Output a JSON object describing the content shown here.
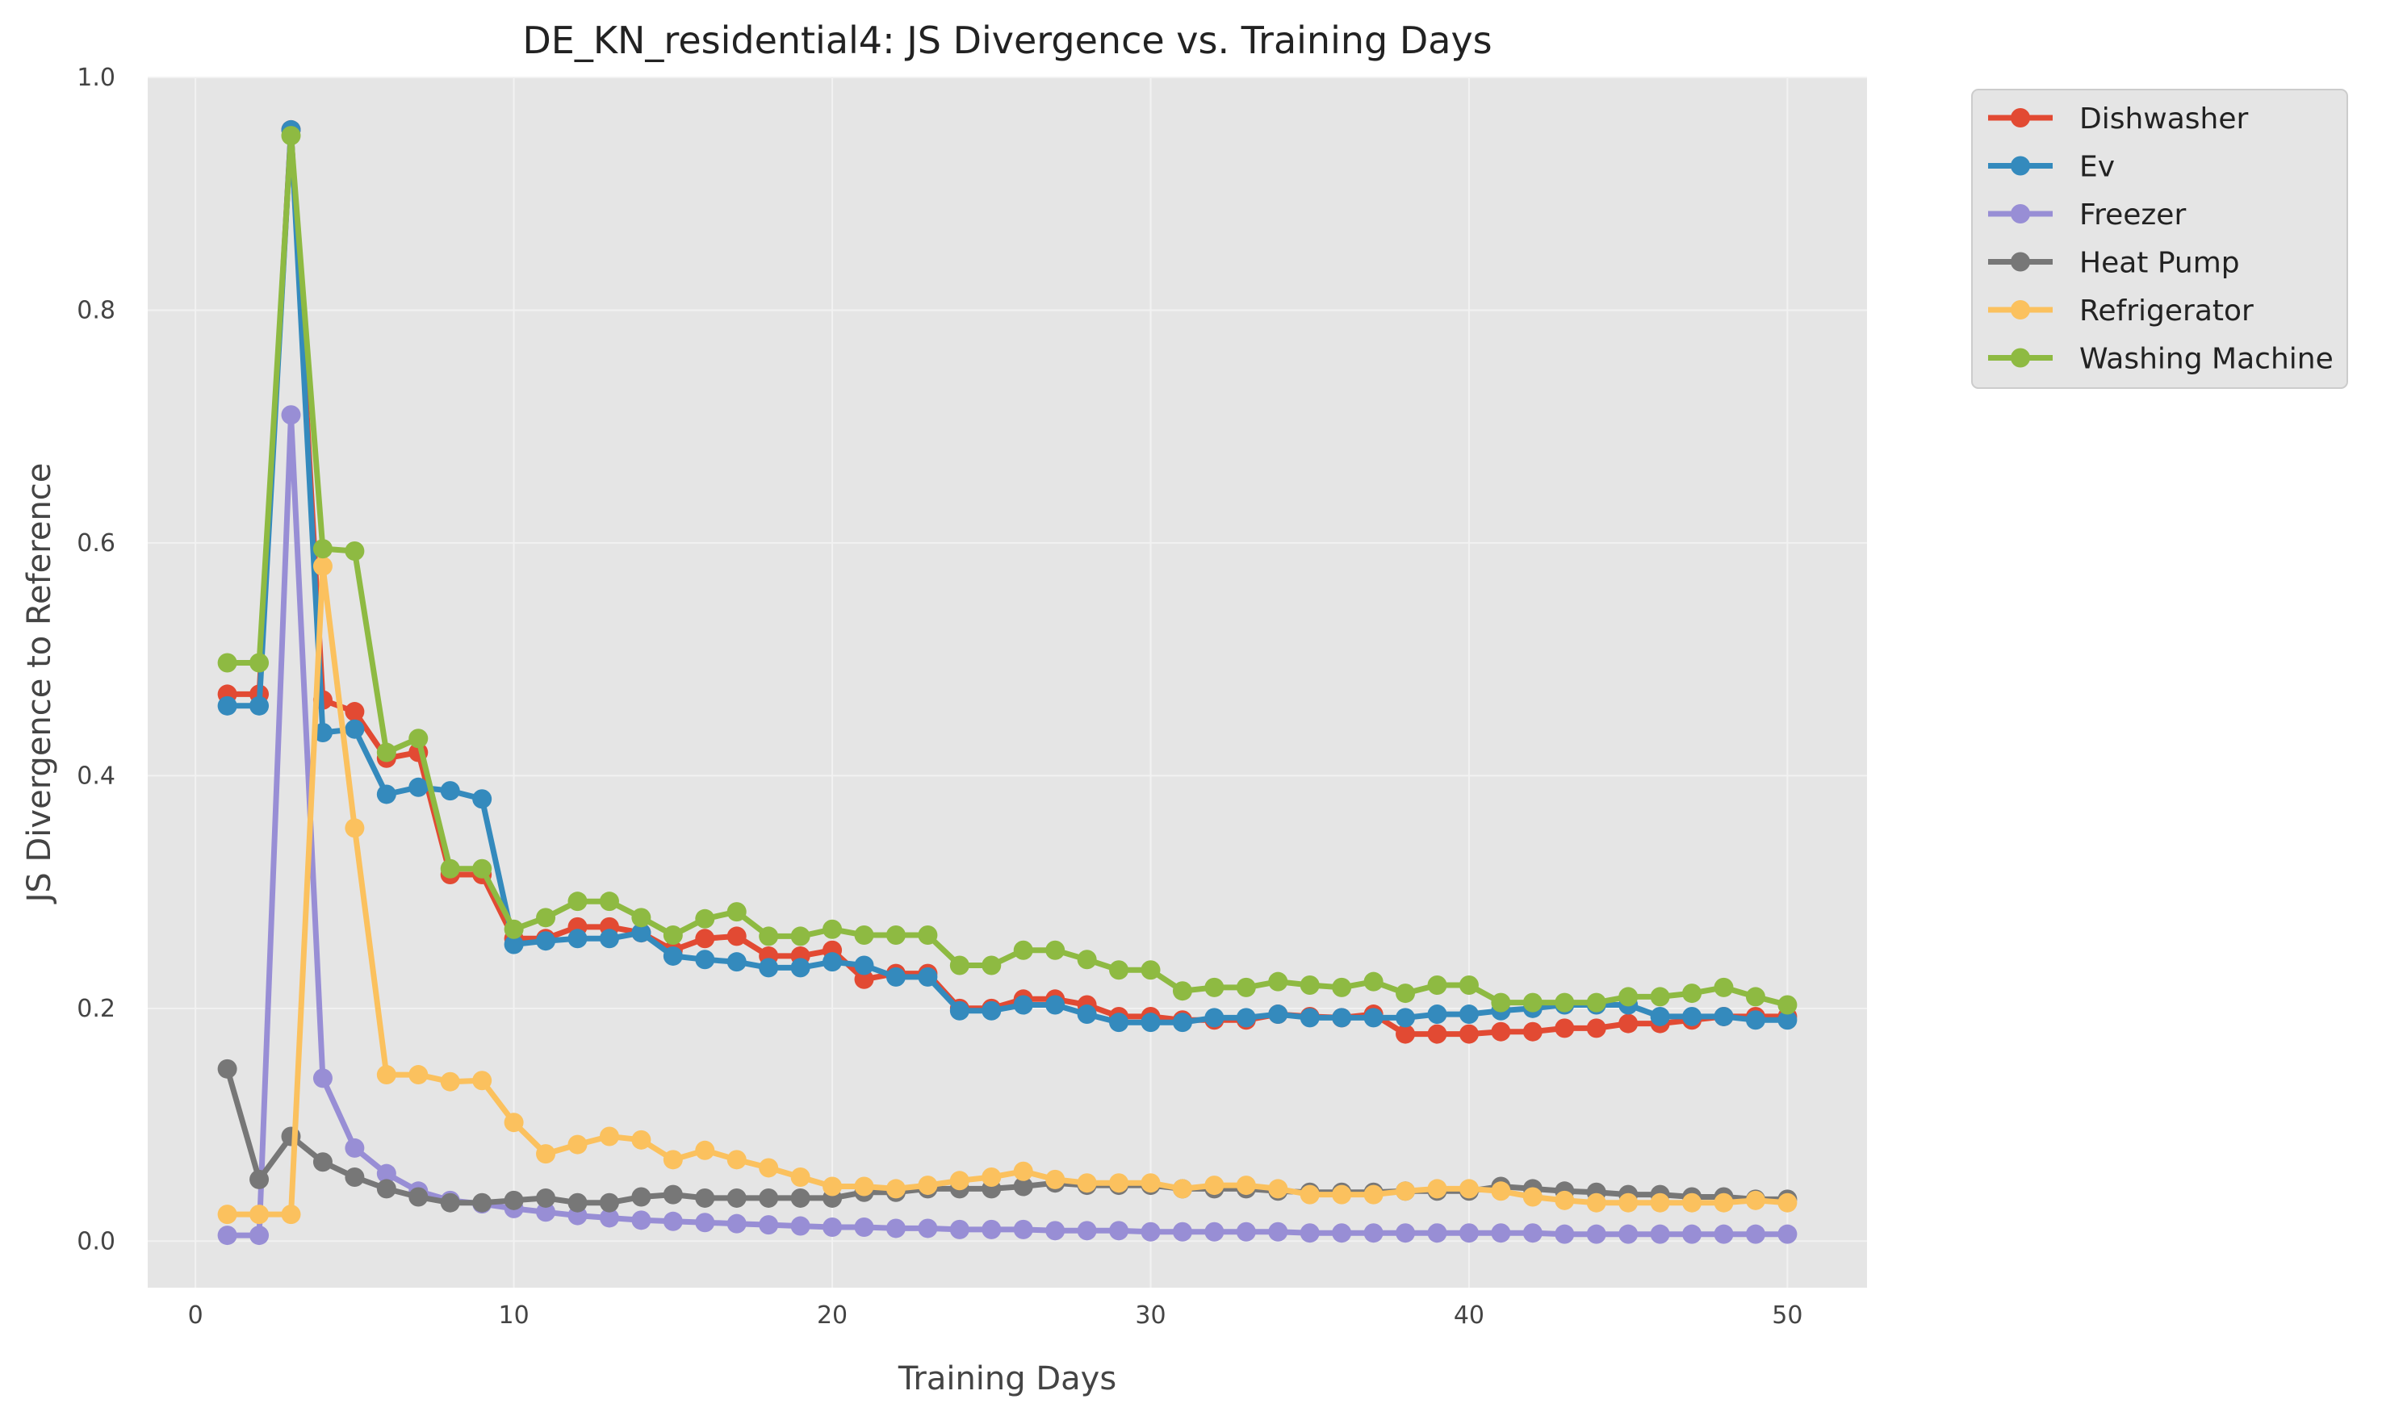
{
  "chart_data": {
    "type": "line",
    "title": "DE_KN_residential4: JS Divergence vs. Training Days",
    "xlabel": "Training Days",
    "ylabel": "JS Divergence to Reference",
    "xlim": [
      -1.5,
      52.5
    ],
    "ylim": [
      -0.04,
      1.0
    ],
    "xticks": [
      0,
      10,
      20,
      30,
      40,
      50
    ],
    "xtick_labels": [
      "0",
      "10",
      "20",
      "30",
      "40",
      "50"
    ],
    "yticks": [
      0.0,
      0.2,
      0.4,
      0.6,
      0.8,
      1.0
    ],
    "ytick_labels": [
      "0.0",
      "0.2",
      "0.4",
      "0.6",
      "0.8",
      "1.0"
    ],
    "grid": true,
    "legend_position": "outside-top-right",
    "series": [
      {
        "name": "Dishwasher",
        "color": "#E24A33",
        "x": [
          1,
          2,
          3,
          4,
          5,
          6,
          7,
          8,
          9,
          10,
          11,
          12,
          13,
          14,
          15,
          16,
          17,
          18,
          19,
          20,
          21,
          22,
          23,
          24,
          25,
          26,
          27,
          28,
          29,
          30,
          31,
          32,
          33,
          34,
          35,
          36,
          37,
          38,
          39,
          40,
          41,
          42,
          43,
          44,
          45,
          46,
          47,
          48,
          49,
          50
        ],
        "y": [
          0.47,
          0.47,
          0.955,
          0.465,
          0.455,
          0.415,
          0.42,
          0.315,
          0.315,
          0.26,
          0.26,
          0.27,
          0.27,
          0.265,
          0.25,
          0.26,
          0.262,
          0.245,
          0.245,
          0.25,
          0.225,
          0.23,
          0.23,
          0.2,
          0.2,
          0.208,
          0.208,
          0.203,
          0.193,
          0.193,
          0.19,
          0.19,
          0.19,
          0.195,
          0.193,
          0.192,
          0.195,
          0.178,
          0.178,
          0.178,
          0.18,
          0.18,
          0.183,
          0.183,
          0.187,
          0.187,
          0.19,
          0.193,
          0.193,
          0.193
        ]
      },
      {
        "name": "Ev",
        "color": "#348ABD",
        "x": [
          1,
          2,
          3,
          4,
          5,
          6,
          7,
          8,
          9,
          10,
          11,
          12,
          13,
          14,
          15,
          16,
          17,
          18,
          19,
          20,
          21,
          22,
          23,
          24,
          25,
          26,
          27,
          28,
          29,
          30,
          31,
          32,
          33,
          34,
          35,
          36,
          37,
          38,
          39,
          40,
          41,
          42,
          43,
          44,
          45,
          46,
          47,
          48,
          49,
          50
        ],
        "y": [
          0.46,
          0.46,
          0.955,
          0.437,
          0.44,
          0.384,
          0.39,
          0.387,
          0.38,
          0.255,
          0.258,
          0.26,
          0.26,
          0.265,
          0.245,
          0.242,
          0.24,
          0.235,
          0.235,
          0.24,
          0.237,
          0.227,
          0.227,
          0.198,
          0.198,
          0.203,
          0.203,
          0.195,
          0.188,
          0.188,
          0.188,
          0.192,
          0.192,
          0.195,
          0.192,
          0.192,
          0.192,
          0.192,
          0.195,
          0.195,
          0.198,
          0.2,
          0.203,
          0.203,
          0.203,
          0.193,
          0.193,
          0.193,
          0.19,
          0.19
        ]
      },
      {
        "name": "Freezer",
        "color": "#988ED5",
        "x": [
          1,
          2,
          3,
          4,
          5,
          6,
          7,
          8,
          9,
          10,
          11,
          12,
          13,
          14,
          15,
          16,
          17,
          18,
          19,
          20,
          21,
          22,
          23,
          24,
          25,
          26,
          27,
          28,
          29,
          30,
          31,
          32,
          33,
          34,
          35,
          36,
          37,
          38,
          39,
          40,
          41,
          42,
          43,
          44,
          45,
          46,
          47,
          48,
          49,
          50
        ],
        "y": [
          0.005,
          0.005,
          0.71,
          0.14,
          0.08,
          0.058,
          0.043,
          0.035,
          0.032,
          0.028,
          0.025,
          0.022,
          0.02,
          0.018,
          0.017,
          0.016,
          0.015,
          0.014,
          0.013,
          0.012,
          0.012,
          0.011,
          0.011,
          0.01,
          0.01,
          0.01,
          0.009,
          0.009,
          0.009,
          0.008,
          0.008,
          0.008,
          0.008,
          0.008,
          0.007,
          0.007,
          0.007,
          0.007,
          0.007,
          0.007,
          0.007,
          0.007,
          0.006,
          0.006,
          0.006,
          0.006,
          0.006,
          0.006,
          0.006,
          0.006
        ]
      },
      {
        "name": "Heat Pump",
        "color": "#777777",
        "x": [
          1,
          2,
          3,
          4,
          5,
          6,
          7,
          8,
          9,
          10,
          11,
          12,
          13,
          14,
          15,
          16,
          17,
          18,
          19,
          20,
          21,
          22,
          23,
          24,
          25,
          26,
          27,
          28,
          29,
          30,
          31,
          32,
          33,
          34,
          35,
          36,
          37,
          38,
          39,
          40,
          41,
          42,
          43,
          44,
          45,
          46,
          47,
          48,
          49,
          50
        ],
        "y": [
          0.148,
          0.053,
          0.09,
          0.068,
          0.055,
          0.045,
          0.038,
          0.033,
          0.033,
          0.035,
          0.037,
          0.033,
          0.033,
          0.038,
          0.04,
          0.037,
          0.037,
          0.037,
          0.037,
          0.037,
          0.042,
          0.042,
          0.045,
          0.045,
          0.045,
          0.047,
          0.05,
          0.048,
          0.048,
          0.048,
          0.045,
          0.045,
          0.045,
          0.043,
          0.042,
          0.042,
          0.042,
          0.043,
          0.043,
          0.043,
          0.047,
          0.045,
          0.043,
          0.042,
          0.04,
          0.04,
          0.038,
          0.038,
          0.036,
          0.036
        ]
      },
      {
        "name": "Refrigerator",
        "color": "#FBC15E",
        "x": [
          1,
          2,
          3,
          4,
          5,
          6,
          7,
          8,
          9,
          10,
          11,
          12,
          13,
          14,
          15,
          16,
          17,
          18,
          19,
          20,
          21,
          22,
          23,
          24,
          25,
          26,
          27,
          28,
          29,
          30,
          31,
          32,
          33,
          34,
          35,
          36,
          37,
          38,
          39,
          40,
          41,
          42,
          43,
          44,
          45,
          46,
          47,
          48,
          49,
          50
        ],
        "y": [
          0.023,
          0.023,
          0.023,
          0.58,
          0.355,
          0.143,
          0.143,
          0.137,
          0.138,
          0.102,
          0.075,
          0.083,
          0.09,
          0.087,
          0.07,
          0.078,
          0.07,
          0.063,
          0.055,
          0.047,
          0.047,
          0.045,
          0.048,
          0.052,
          0.055,
          0.06,
          0.053,
          0.05,
          0.05,
          0.05,
          0.045,
          0.048,
          0.048,
          0.045,
          0.04,
          0.04,
          0.04,
          0.043,
          0.045,
          0.045,
          0.043,
          0.038,
          0.035,
          0.033,
          0.033,
          0.033,
          0.033,
          0.033,
          0.035,
          0.033
        ]
      },
      {
        "name": "Washing Machine",
        "color": "#8EBA42",
        "x": [
          1,
          2,
          3,
          4,
          5,
          6,
          7,
          8,
          9,
          10,
          11,
          12,
          13,
          14,
          15,
          16,
          17,
          18,
          19,
          20,
          21,
          22,
          23,
          24,
          25,
          26,
          27,
          28,
          29,
          30,
          31,
          32,
          33,
          34,
          35,
          36,
          37,
          38,
          39,
          40,
          41,
          42,
          43,
          44,
          45,
          46,
          47,
          48,
          49,
          50
        ],
        "y": [
          0.497,
          0.497,
          0.95,
          0.595,
          0.593,
          0.42,
          0.432,
          0.32,
          0.32,
          0.268,
          0.278,
          0.292,
          0.292,
          0.278,
          0.263,
          0.277,
          0.283,
          0.262,
          0.262,
          0.268,
          0.263,
          0.263,
          0.263,
          0.237,
          0.237,
          0.25,
          0.25,
          0.242,
          0.233,
          0.233,
          0.215,
          0.218,
          0.218,
          0.223,
          0.22,
          0.218,
          0.223,
          0.213,
          0.22,
          0.22,
          0.205,
          0.205,
          0.205,
          0.205,
          0.21,
          0.21,
          0.213,
          0.218,
          0.21,
          0.203
        ]
      }
    ]
  },
  "style": {
    "plot_background": "#E5E5E5",
    "grid_color": "#F2F2F2",
    "legend_background": "#E5E5E5",
    "legend_border": "#CCCCCC"
  }
}
